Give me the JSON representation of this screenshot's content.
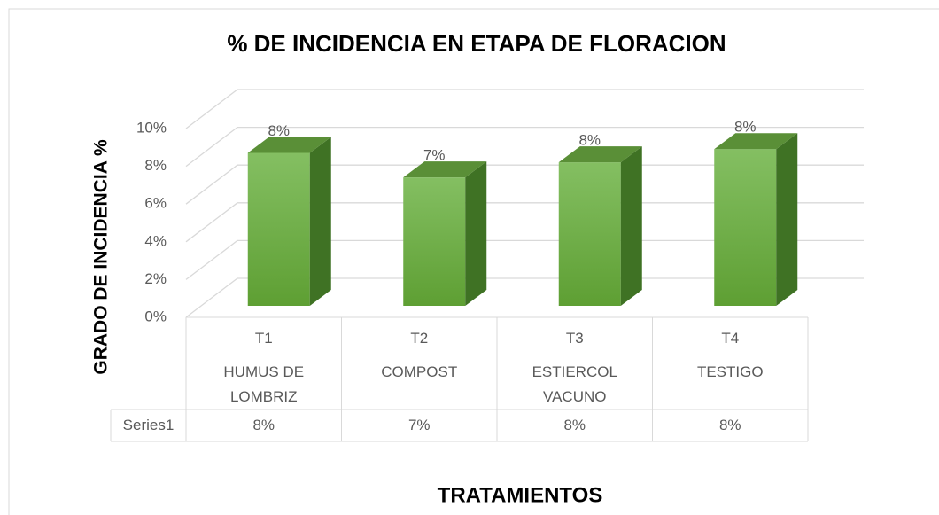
{
  "chart_data": {
    "type": "bar3d",
    "title": "% DE INCIDENCIA EN ETAPA DE FLORACION",
    "y_label": "GRADO DE INCIDENCIA %",
    "x_label": "TRATAMIENTOS",
    "categories": [
      "T1",
      "T2",
      "T3",
      "T4"
    ],
    "category_labels": [
      "HUMUS DE LOMBRIZ",
      "COMPOST",
      "ESTIERCOL VACUNO",
      "TESTIGO"
    ],
    "series": [
      {
        "name": "Series1",
        "color": "#70ad47",
        "values": [
          8.1,
          6.8,
          7.6,
          8.3
        ],
        "value_labels": [
          "8%",
          "7%",
          "8%",
          "8%"
        ]
      }
    ],
    "ylim": [
      0,
      10
    ],
    "yticks": [
      {
        "value": 0,
        "label": "0%"
      },
      {
        "value": 2,
        "label": "2%"
      },
      {
        "value": 4,
        "label": "4%"
      },
      {
        "value": 6,
        "label": "6%"
      },
      {
        "value": 8,
        "label": "8%"
      },
      {
        "value": 10,
        "label": "10%"
      }
    ],
    "grid": true,
    "data_table": true
  }
}
